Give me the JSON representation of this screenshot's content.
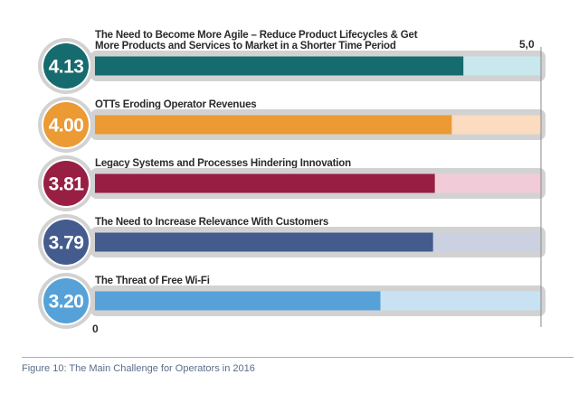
{
  "chart_data": {
    "type": "bar",
    "orientation": "horizontal",
    "categories": [
      [
        "The Need to Become More Agile – Reduce Product Lifecycles & Get",
        "More Products and Services to Market in a Shorter Time Period"
      ],
      [
        "OTTs Eroding Operator Revenues"
      ],
      [
        "Legacy Systems and Processes Hindering Innovation"
      ],
      [
        "The Need to Increase Relevance With Customers"
      ],
      [
        "The Threat of Free Wi-Fi"
      ]
    ],
    "values": [
      4.13,
      4.0,
      3.81,
      3.79,
      3.2
    ],
    "value_labels": [
      "4.13",
      "4.00",
      "3.81",
      "3.79",
      "3.20"
    ],
    "xlim": [
      0,
      5
    ],
    "tick_labels": {
      "min": "0",
      "max": "5,0"
    },
    "colors": [
      "#156b6e",
      "#eb9a34",
      "#991e44",
      "#445b8e",
      "#56a2d8"
    ],
    "track_colors": [
      "#c8e8ee",
      "#fbdcc0",
      "#f1ccd8",
      "#ccd1e2",
      "#c8e2f3"
    ],
    "grid": false,
    "legend": "none"
  },
  "caption": "Figure 10: The Main Challenge for Operators in 2016"
}
